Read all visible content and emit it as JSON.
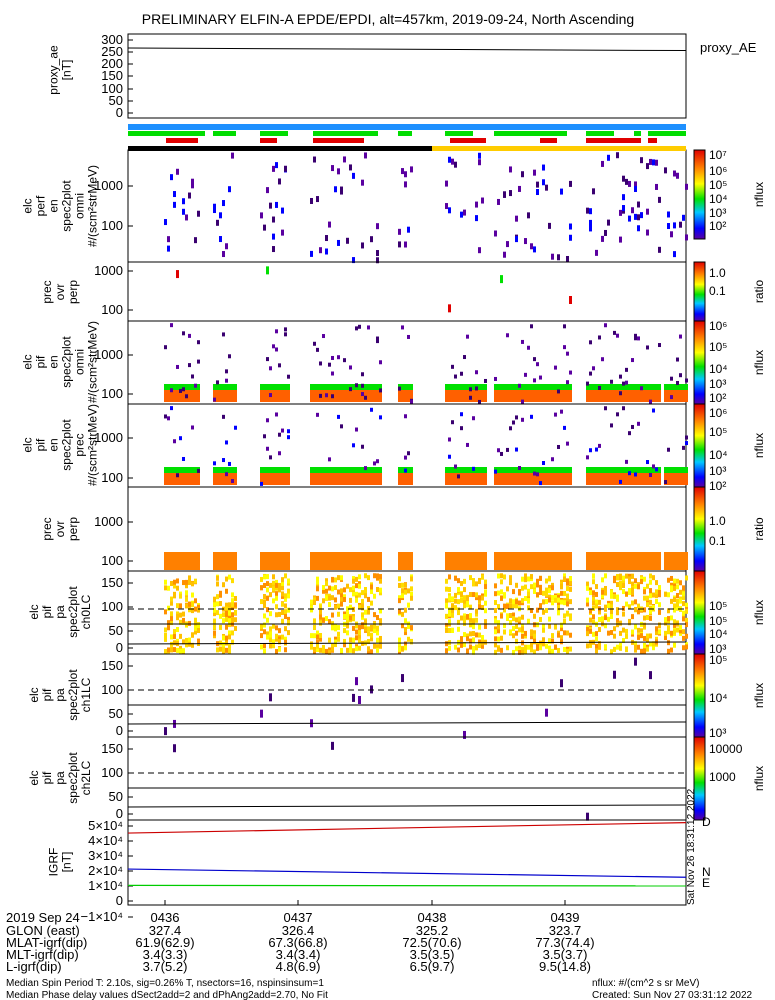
{
  "title": "PRELIMINARY ELFIN-A EPDE/EPDI, alt=457km, 2019-09-24, North Ascending",
  "colors": {
    "mlt_bar": "#1e90ff",
    "green_bar": "#00dd00",
    "red_bar": "#e00000",
    "day_bar": "#ffcc00",
    "night_bar": "#000000",
    "igrf_d": "#cc0000",
    "igrf_n": "#0000cc",
    "igrf_e": "#00cc00"
  },
  "chart_data": [
    {
      "type": "line",
      "panel": "proxy_ae",
      "ylabel": "proxy_ae [nT]",
      "legend": "proxy_AE",
      "yticks": [
        "300",
        "250",
        "200",
        "150",
        "100",
        "50",
        "0"
      ],
      "ylim": [
        -20,
        310
      ],
      "x": [
        0,
        1
      ],
      "values": [
        255,
        245
      ]
    },
    {
      "type": "heatmap",
      "panel": "elc-perf-en-spec2plot-omni",
      "ylabel": "elc perf en spec2plot omni #/(scm²strMeV)",
      "yticks": [
        "1000",
        "100"
      ],
      "colorbar_ticks": [
        "10⁷",
        "10⁶",
        "10⁵",
        "10⁴",
        "10³",
        "10²"
      ],
      "colorbar_label": "nflux"
    },
    {
      "type": "heatmap",
      "panel": "prec-ovr-perp-1",
      "ylabel": "prec ovr perp",
      "yticks": [
        "1000",
        "100"
      ],
      "colorbar_ticks": [
        "1.0",
        "0.1"
      ],
      "colorbar_label": "ratio"
    },
    {
      "type": "heatmap",
      "panel": "elc-pif-en-spec2plot-omni",
      "ylabel": "elc pif en spec2plot omni #/(scm²strMeV)",
      "yticks": [
        "1000",
        "100"
      ],
      "colorbar_ticks": [
        "10⁶",
        "10⁵",
        "10⁴",
        "10³",
        "10²"
      ],
      "colorbar_label": "nflux"
    },
    {
      "type": "heatmap",
      "panel": "elc-pif-en-spec2plot-prec",
      "ylabel": "elc pif en spec2plot prec #/(scm²strMeV)",
      "yticks": [
        "1000",
        "100"
      ],
      "colorbar_ticks": [
        "10⁶",
        "10⁵",
        "10⁴",
        "10³",
        "10²"
      ],
      "colorbar_label": "nflux"
    },
    {
      "type": "heatmap",
      "panel": "prec-ovr-perp-2",
      "ylabel": "prec ovr perp",
      "yticks": [
        "1000",
        "100"
      ],
      "colorbar_ticks": [
        "1.0",
        "0.1"
      ],
      "colorbar_label": "ratio"
    },
    {
      "type": "heatmap",
      "panel": "elc-pif-pa-spec2plot-ch0LC",
      "ylabel": "elc pif pa spec2plot ch0LC",
      "yticks": [
        "150",
        "100",
        "50",
        "0"
      ],
      "colorbar_ticks": [
        "10⁵",
        "10⁵",
        "10⁴",
        "10³"
      ],
      "colorbar_label": "nflux"
    },
    {
      "type": "heatmap",
      "panel": "elc-pif-pa-spec2plot-ch1LC",
      "ylabel": "elc pif pa spec2plot ch1LC",
      "yticks": [
        "150",
        "100",
        "50",
        "0"
      ],
      "colorbar_ticks": [
        "10⁵",
        "10⁴",
        "10³"
      ],
      "colorbar_label": "nflux"
    },
    {
      "type": "heatmap",
      "panel": "elc-pif-pa-spec2plot-ch2LC",
      "ylabel": "elc pif pa spec2plot ch2LC",
      "yticks": [
        "150",
        "100",
        "50",
        "0"
      ],
      "colorbar_ticks": [
        "10000",
        "1000"
      ],
      "colorbar_label": "nflux"
    },
    {
      "type": "line",
      "panel": "igrf",
      "ylabel": "IGRF [nT]",
      "yticks": [
        "5×10⁴",
        "4×10⁴",
        "3×10⁴",
        "2×10⁴",
        "1×10⁴",
        "0",
        "−1×10⁴"
      ],
      "ylim": [
        -14000,
        51000
      ],
      "legend": [
        "D",
        "N",
        "E"
      ],
      "series": [
        {
          "name": "D",
          "x": [
            0,
            1
          ],
          "values": [
            41000,
            49000
          ]
        },
        {
          "name": "N",
          "x": [
            0,
            1
          ],
          "values": [
            13500,
            7200
          ]
        },
        {
          "name": "E",
          "x": [
            0,
            1
          ],
          "values": [
            1000,
            600
          ]
        }
      ]
    }
  ],
  "vertical_stamp": "Sat Nov 26 18:31:12 2022",
  "footer": {
    "rows": [
      {
        "label": "2019 Sep 24",
        "values": [
          "0436",
          "0437",
          "0438",
          "0439"
        ]
      },
      {
        "label": "GLON (east)",
        "values": [
          "327.4",
          "326.4",
          "325.2",
          "323.7"
        ]
      },
      {
        "label": "MLAT-igrf(dip)",
        "values": [
          "61.9(62.9)",
          "67.3(66.8)",
          "72.5(70.6)",
          "77.3(74.4)"
        ]
      },
      {
        "label": "MLT-igrf(dip)",
        "values": [
          "3.4(3.3)",
          "3.4(3.4)",
          "3.5(3.5)",
          "3.5(3.7)"
        ]
      },
      {
        "label": "L-igrf(dip)",
        "values": [
          "3.7(5.2)",
          "4.8(6.9)",
          "6.5(9.7)",
          "9.5(14.8)"
        ]
      }
    ],
    "note1": "Median Spin Period T: 2.10s, sig=0.26% T, nsectors=16, nspinsinsum=1",
    "note2": "Median Phase delay values dSect2add=2 and dPhAng2add=2.70, No Fit",
    "nflux_units": "nflux: #/(cm^2 s sr MeV)",
    "created": "Created: Sun Nov 27 03:31:12 2022"
  }
}
